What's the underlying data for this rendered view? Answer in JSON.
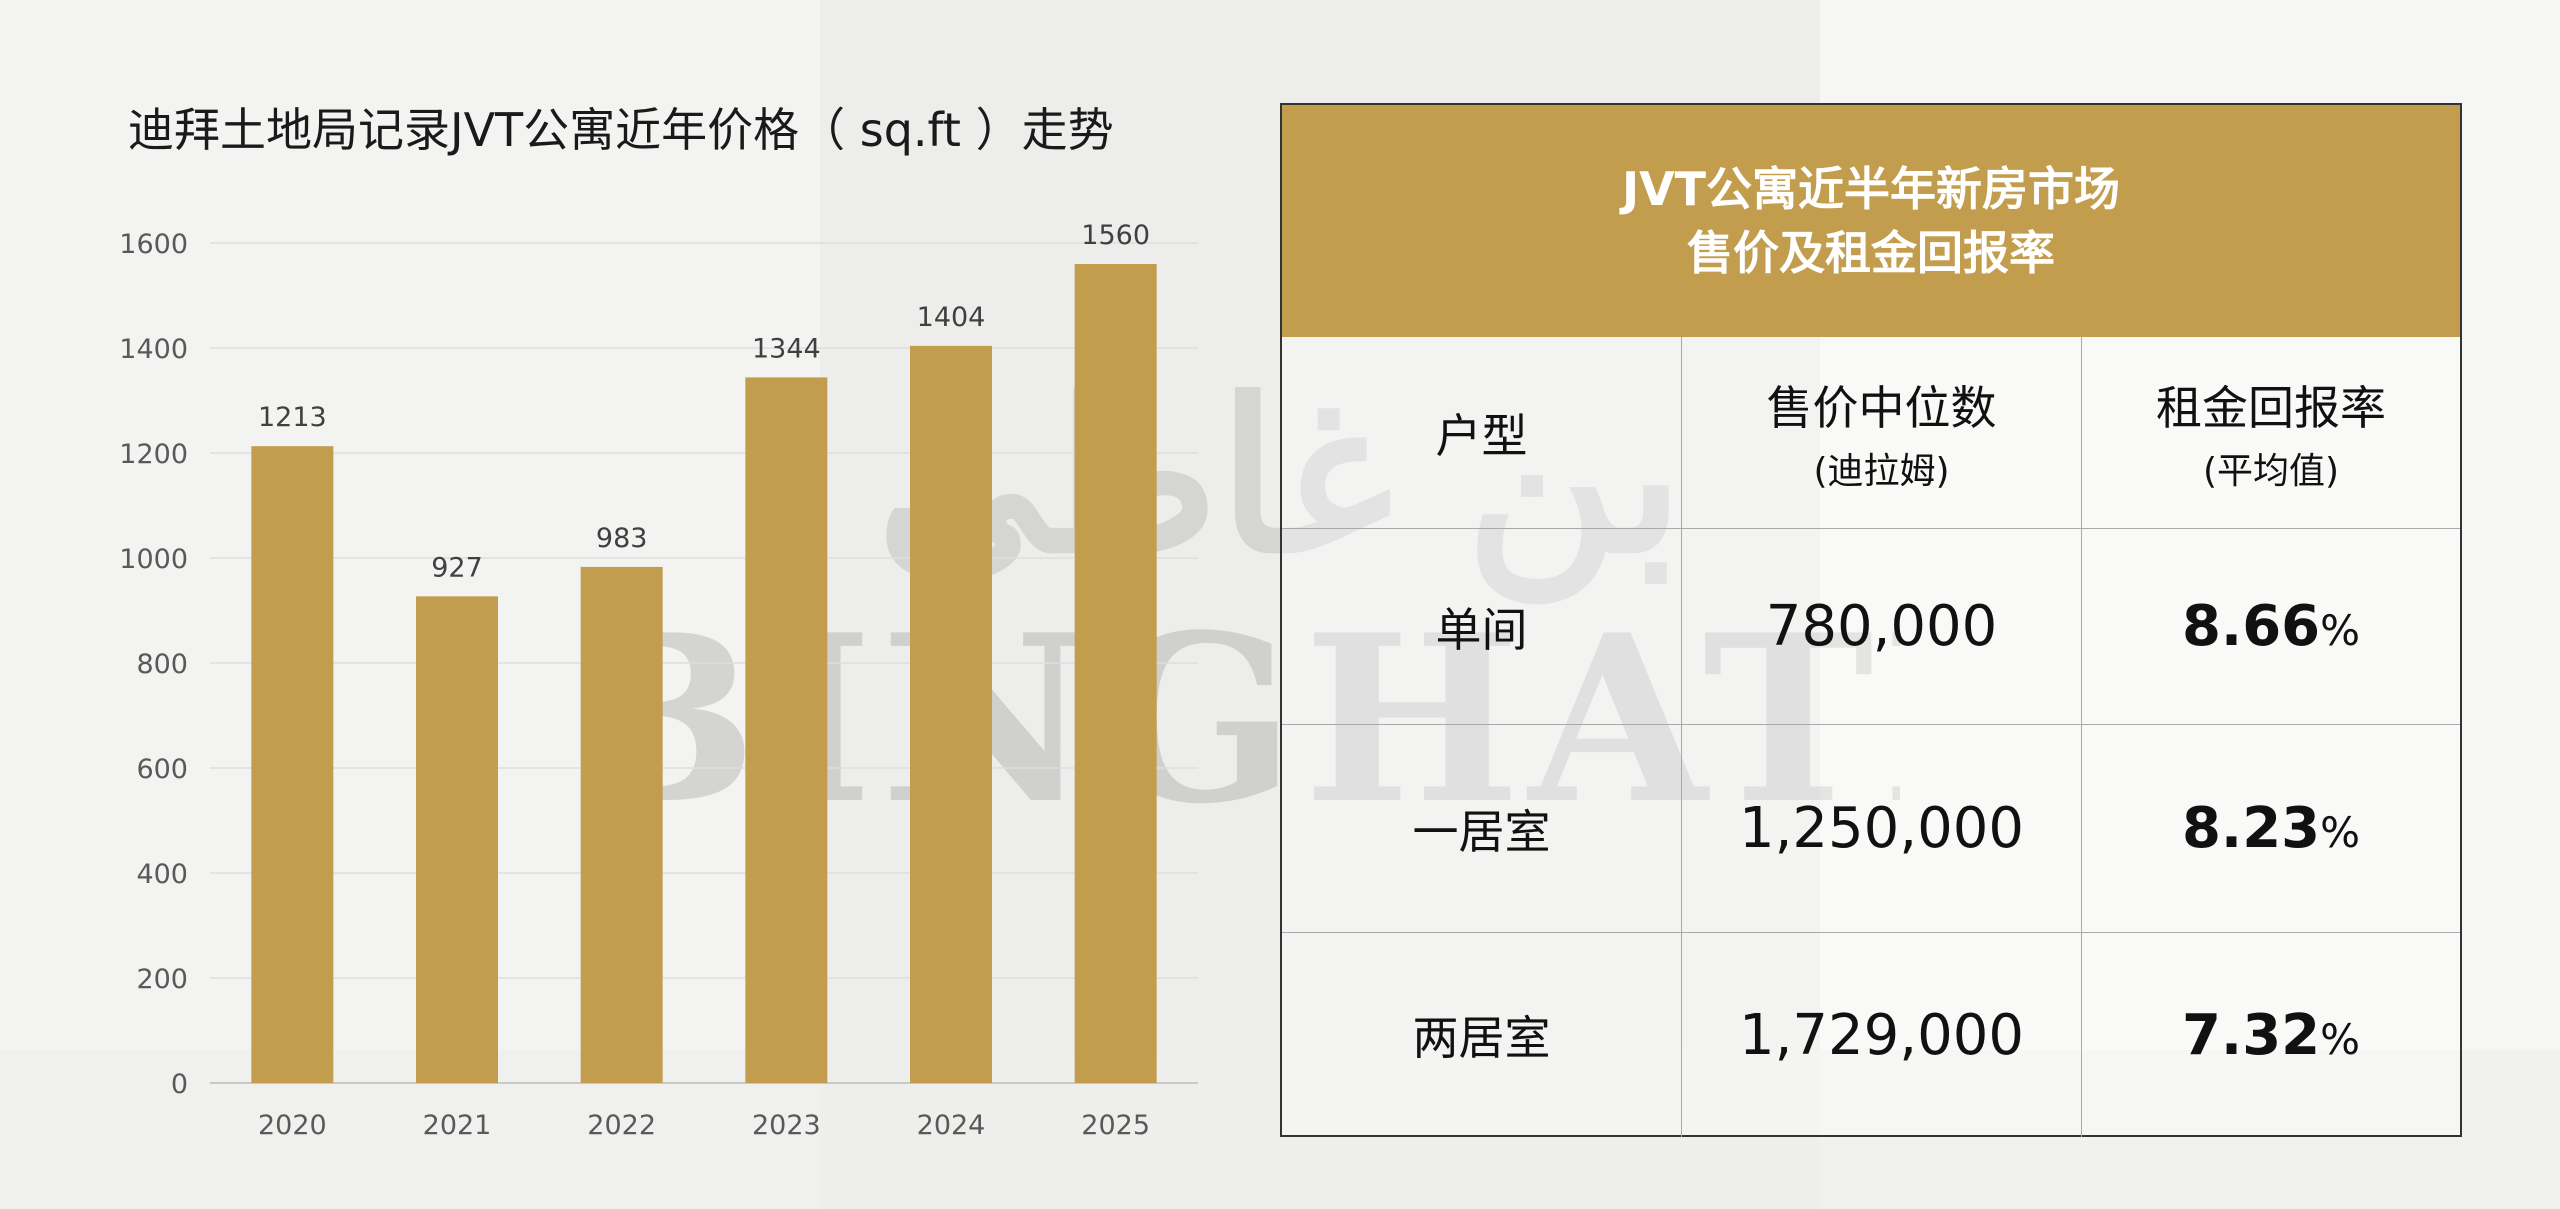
{
  "chart_data": {
    "type": "bar",
    "title": "迪拜土地局记录JVT公寓近年价格（ sq.ft ）走势",
    "categories": [
      "2020",
      "2021",
      "2022",
      "2023",
      "2024",
      "2025"
    ],
    "values": [
      1213,
      927,
      983,
      1344,
      1404,
      1560
    ],
    "ylim": [
      0,
      1600
    ],
    "yticks": [
      "0",
      "200",
      "400",
      "600",
      "800",
      "1000",
      "1200",
      "1400",
      "1600"
    ],
    "grid": true,
    "bar_color": "#c39d4e"
  },
  "table": {
    "title_line1": "JVT公寓近半年新房市场",
    "title_line2": "售价及租金回报率",
    "header_color": "#c39d4e",
    "columns": [
      {
        "label": "户型",
        "sub": ""
      },
      {
        "label": "售价中位数",
        "sub": "(迪拉姆)"
      },
      {
        "label": "租金回报率",
        "sub": "(平均值)"
      }
    ],
    "rows": [
      {
        "type": "单间",
        "price": "780,000",
        "yield": "8.66",
        "unit": "%"
      },
      {
        "type": "一居室",
        "price": "1,250,000",
        "yield": "8.23",
        "unit": "%"
      },
      {
        "type": "两居室",
        "price": "1,729,000",
        "yield": "7.32",
        "unit": "%"
      }
    ]
  },
  "watermark": {
    "text": "BINGHATI",
    "arabic": "بن غاطي"
  }
}
